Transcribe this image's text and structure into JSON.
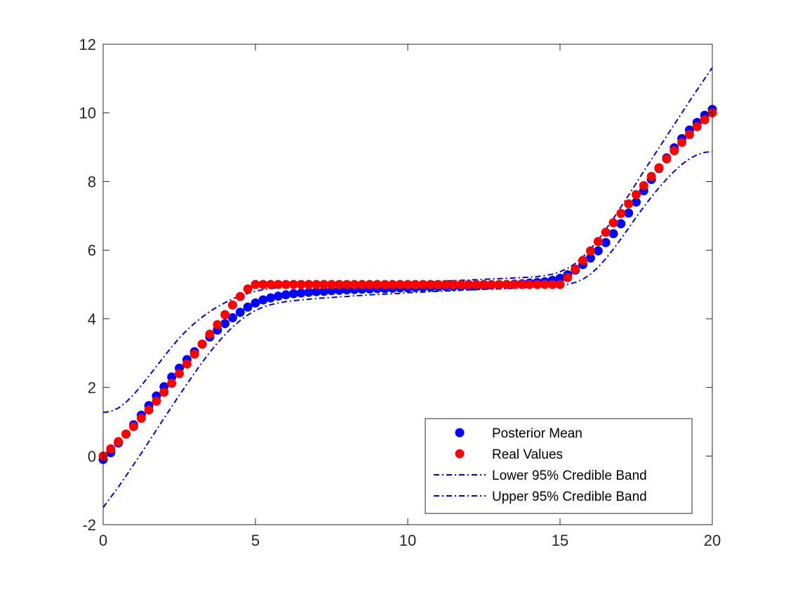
{
  "chart_data": {
    "type": "scatter",
    "title": "",
    "xlabel": "",
    "ylabel": "",
    "xlim": [
      0,
      20
    ],
    "ylim": [
      -2,
      12
    ],
    "xticks": [
      0,
      5,
      10,
      15,
      20
    ],
    "yticks": [
      -2,
      0,
      2,
      4,
      6,
      8,
      10,
      12
    ],
    "grid": false,
    "legend_position": "bottom-right",
    "x": [
      0,
      0.25,
      0.5,
      0.75,
      1,
      1.25,
      1.5,
      1.75,
      2,
      2.25,
      2.5,
      2.75,
      3,
      3.25,
      3.5,
      3.75,
      4,
      4.25,
      4.5,
      4.75,
      5,
      5.25,
      5.5,
      5.75,
      6,
      6.25,
      6.5,
      6.75,
      7,
      7.25,
      7.5,
      7.75,
      8,
      8.25,
      8.5,
      8.75,
      9,
      9.25,
      9.5,
      9.75,
      10,
      10.25,
      10.5,
      10.75,
      11,
      11.25,
      11.5,
      11.75,
      12,
      12.25,
      12.5,
      12.75,
      13,
      13.25,
      13.5,
      13.75,
      14,
      14.25,
      14.5,
      14.75,
      15,
      15.25,
      15.5,
      15.75,
      16,
      16.25,
      16.5,
      16.75,
      17,
      17.25,
      17.5,
      17.75,
      18,
      18.25,
      18.5,
      18.75,
      19,
      19.25,
      19.5,
      19.75,
      20
    ],
    "series": [
      {
        "name": "Posterior Mean",
        "style": "marker",
        "color": "#0000ff",
        "values": [
          -0.1,
          0.1,
          0.38,
          0.64,
          0.91,
          1.19,
          1.47,
          1.75,
          2.02,
          2.3,
          2.56,
          2.81,
          3.04,
          3.26,
          3.47,
          3.67,
          3.86,
          4.03,
          4.19,
          4.34,
          4.46,
          4.55,
          4.61,
          4.66,
          4.7,
          4.73,
          4.75,
          4.77,
          4.79,
          4.8,
          4.82,
          4.83,
          4.84,
          4.85,
          4.86,
          4.87,
          4.88,
          4.88,
          4.89,
          4.9,
          4.9,
          4.91,
          4.92,
          4.92,
          4.93,
          4.94,
          4.94,
          4.95,
          4.95,
          4.96,
          4.97,
          4.98,
          4.99,
          5.0,
          5.01,
          5.02,
          5.04,
          5.06,
          5.08,
          5.12,
          5.18,
          5.28,
          5.42,
          5.58,
          5.77,
          5.98,
          6.22,
          6.48,
          6.77,
          7.08,
          7.4,
          7.73,
          8.06,
          8.38,
          8.69,
          8.98,
          9.25,
          9.5,
          9.72,
          9.93,
          10.1
        ]
      },
      {
        "name": "Real Values",
        "style": "marker",
        "color": "#ff0000",
        "values": [
          0,
          0.21,
          0.42,
          0.64,
          0.86,
          1.1,
          1.34,
          1.6,
          1.86,
          2.12,
          2.4,
          2.68,
          2.97,
          3.26,
          3.55,
          3.83,
          4.12,
          4.4,
          4.65,
          4.87,
          5.0,
          5.0,
          5.0,
          5.0,
          5.0,
          5.0,
          5.0,
          5.0,
          5.0,
          5.0,
          5.0,
          5.0,
          5.0,
          5.0,
          5.0,
          5.0,
          5.0,
          5.0,
          5.0,
          5.0,
          5.0,
          5.0,
          5.0,
          5.0,
          5.0,
          5.0,
          5.0,
          5.0,
          5.0,
          5.0,
          5.0,
          5.0,
          5.0,
          5.0,
          5.0,
          5.0,
          5.0,
          5.0,
          5.0,
          5.0,
          5.0,
          5.2,
          5.45,
          5.7,
          5.98,
          6.25,
          6.52,
          6.8,
          7.07,
          7.35,
          7.62,
          7.88,
          8.15,
          8.4,
          8.66,
          8.9,
          9.14,
          9.37,
          9.6,
          9.8,
          10.0
        ]
      },
      {
        "name": "Lower 95% Credible Band",
        "style": "dash-dot",
        "color": "#0000c8",
        "values": [
          -1.5,
          -1.2,
          -0.9,
          -0.58,
          -0.25,
          0.08,
          0.42,
          0.76,
          1.1,
          1.44,
          1.77,
          2.1,
          2.42,
          2.73,
          3.02,
          3.29,
          3.54,
          3.76,
          3.95,
          4.11,
          4.24,
          4.34,
          4.41,
          4.46,
          4.5,
          4.53,
          4.55,
          4.57,
          4.59,
          4.61,
          4.62,
          4.64,
          4.65,
          4.67,
          4.68,
          4.7,
          4.71,
          4.72,
          4.73,
          4.74,
          4.76,
          4.77,
          4.78,
          4.79,
          4.8,
          4.81,
          4.82,
          4.83,
          4.84,
          4.85,
          4.86,
          4.87,
          4.87,
          4.88,
          4.89,
          4.9,
          4.91,
          4.92,
          4.93,
          4.95,
          4.97,
          5.0,
          5.06,
          5.15,
          5.3,
          5.5,
          5.75,
          6.03,
          6.33,
          6.64,
          6.96,
          7.26,
          7.55,
          7.82,
          8.07,
          8.3,
          8.5,
          8.66,
          8.78,
          8.85,
          8.87
        ]
      },
      {
        "name": "Upper 95% Credible Band",
        "style": "dash-dot",
        "color": "#0000c8",
        "values": [
          1.27,
          1.3,
          1.4,
          1.57,
          1.79,
          2.05,
          2.33,
          2.61,
          2.9,
          3.18,
          3.44,
          3.67,
          3.87,
          4.05,
          4.21,
          4.35,
          4.47,
          4.58,
          4.67,
          4.74,
          4.8,
          4.85,
          4.88,
          4.91,
          4.93,
          4.95,
          4.96,
          4.97,
          4.98,
          4.99,
          5.0,
          5.0,
          5.01,
          5.01,
          5.02,
          5.02,
          5.03,
          5.03,
          5.04,
          5.05,
          5.05,
          5.06,
          5.07,
          5.08,
          5.09,
          5.1,
          5.11,
          5.12,
          5.13,
          5.14,
          5.15,
          5.16,
          5.17,
          5.18,
          5.19,
          5.2,
          5.21,
          5.23,
          5.26,
          5.3,
          5.37,
          5.47,
          5.61,
          5.8,
          6.03,
          6.3,
          6.6,
          6.92,
          7.26,
          7.6,
          7.95,
          8.3,
          8.64,
          8.98,
          9.32,
          9.66,
          10.0,
          10.34,
          10.67,
          11.0,
          11.32
        ]
      }
    ]
  }
}
